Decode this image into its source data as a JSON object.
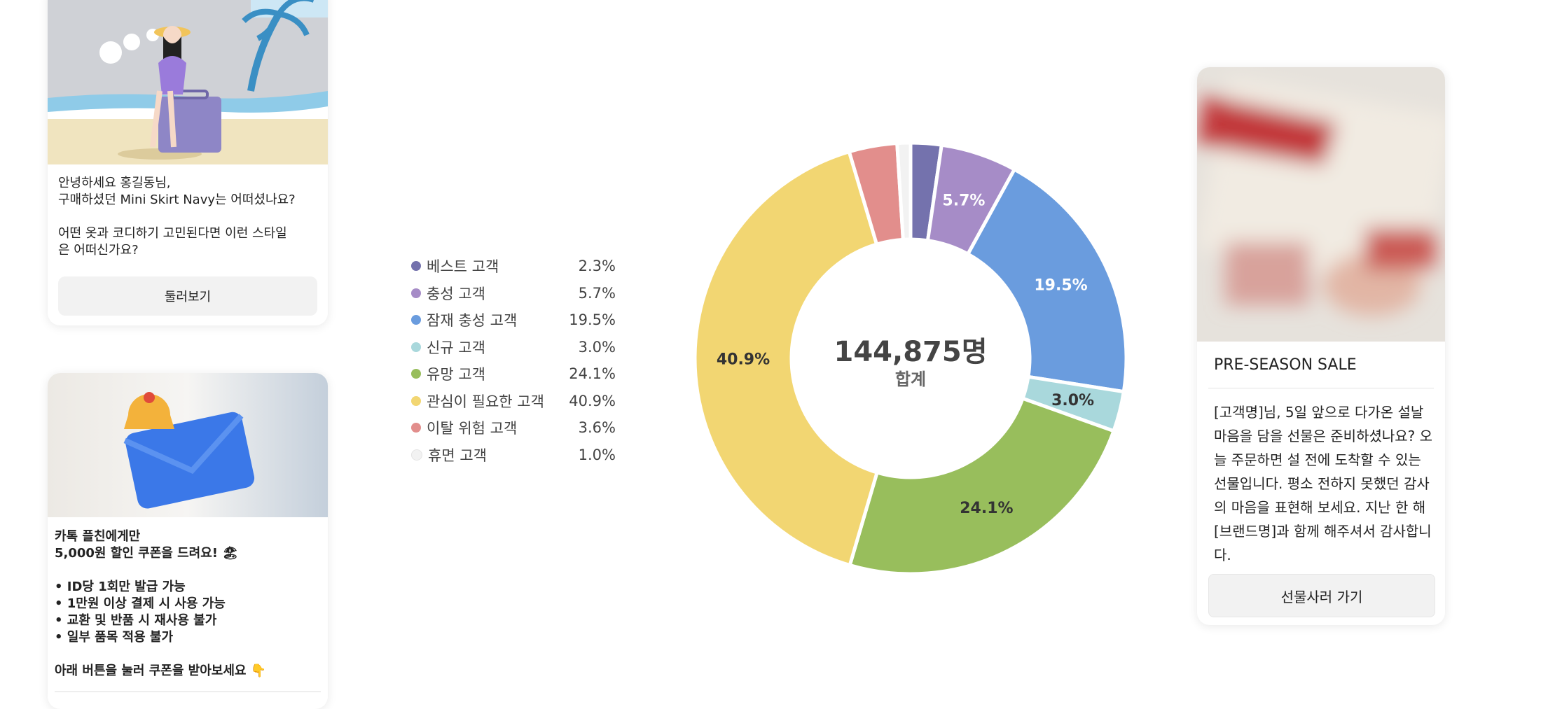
{
  "cards": {
    "vacation": {
      "lines": [
        "안녕하세요 홍길동님,",
        "구매하셨던 Mini Skirt Navy는 어떠셨나요?",
        "",
        "어떤 옷과 코디하기 고민된다면 이런 스타일",
        "은 어떠신가요?"
      ],
      "button_label": "둘러보기"
    },
    "coupon": {
      "lines": [
        "카톡 플친에게만",
        "5,000원 할인 쿠폰을 드려요! 🏖",
        "",
        "• ID당 1회만 발급 가능",
        "• 1만원 이상 결제 시 사용 가능",
        "• 교환 및 반품 시 재사용 불가",
        "• 일부 품목 적용 불가",
        "",
        "아래 버튼을 눌러 쿠폰을 받아보세요 👇"
      ]
    },
    "gift": {
      "title": "PRE-SEASON SALE",
      "body": "[고객명]님, 5일 앞으로 다가온 설날 마음을 담을 선물은 준비하셨나요? 오늘 주문하면 설 전에 도착할 수 있는 선물입니다. 평소 전하지 못했던 감사의 마음을 표현해 보세요. 지난 한 해 [브랜드명]과 함께 해주셔서 감사합니다.",
      "button_label": "선물사러 가기"
    }
  },
  "chart_data": {
    "type": "pie",
    "variant": "donut",
    "center_total": "144,875명",
    "center_label": "합계",
    "categories": [
      "베스트 고객",
      "충성 고객",
      "잠재 충성 고객",
      "신규 고객",
      "유망 고객",
      "관심이 필요한 고객",
      "이탈 위험 고객",
      "휴면 고객"
    ],
    "values": [
      2.3,
      5.7,
      19.5,
      3.0,
      24.1,
      40.9,
      3.6,
      1.0
    ],
    "value_labels": [
      "2.3%",
      "5.7%",
      "19.5%",
      "3.0%",
      "24.1%",
      "40.9%",
      "3.6%",
      "1.0%"
    ],
    "slice_labels": [
      "",
      "5.7%",
      "19.5%",
      "3.0%",
      "24.1%",
      "40.9%",
      "",
      ""
    ],
    "colors": [
      "#7472ad",
      "#a68cc7",
      "#6a9cde",
      "#a9d8dc",
      "#98be5c",
      "#f2d672",
      "#e28e8c",
      "#f2f2f2"
    ],
    "legend_position": "left"
  }
}
